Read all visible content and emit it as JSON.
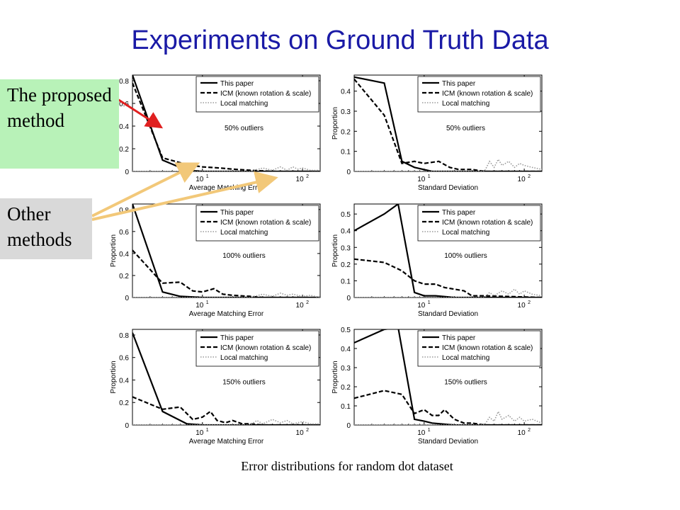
{
  "slide": {
    "title": "Experiments on Ground Truth Data",
    "caption": "Error distributions for random dot dataset"
  },
  "callouts": {
    "proposed": "The proposed method",
    "other": "Other methods"
  },
  "colors": {
    "title": "#1a1aa6",
    "red_arrow": "#e02020",
    "tan_arrow": "#f2c879",
    "proposed_bg": "#b8f2b8",
    "other_bg": "#d9d9d9"
  },
  "chart_data": [
    {
      "type": "line",
      "panel": "avg-50",
      "annotation": "50% outliers",
      "xlabel": "Average Matching Error",
      "ylabel": "Proportion",
      "xscale": "log",
      "xlim": [
        2,
        150
      ],
      "ylim": [
        0,
        0.85
      ],
      "yticks": [
        {
          "v": 0,
          "t": "0"
        },
        {
          "v": 0.2,
          "t": "0.2"
        },
        {
          "v": 0.4,
          "t": "0.4"
        },
        {
          "v": 0.6,
          "t": "0.6"
        },
        {
          "v": 0.8,
          "t": "0.8"
        }
      ],
      "xticks": [
        {
          "v": 10,
          "base": "10",
          "exp": "1"
        },
        {
          "v": 100,
          "base": "10",
          "exp": "2"
        }
      ],
      "legend": [
        "This paper",
        "ICM (known rotation & scale)",
        "Local matching"
      ],
      "series": [
        {
          "name": "This paper",
          "style": "solid",
          "x": [
            2,
            4,
            7,
            10,
            20,
            40,
            150
          ],
          "y": [
            0.85,
            0.1,
            0.01,
            0,
            0,
            0,
            0
          ]
        },
        {
          "name": "ICM (known rotation & scale)",
          "style": "dashed",
          "x": [
            2,
            4,
            7,
            10,
            15,
            20,
            30,
            50,
            80,
            150
          ],
          "y": [
            0.78,
            0.12,
            0.06,
            0.04,
            0.03,
            0.02,
            0.01,
            0,
            0,
            0
          ]
        },
        {
          "name": "Local matching",
          "style": "dotted",
          "x": [
            2,
            30,
            40,
            50,
            60,
            70,
            80,
            90,
            100,
            120,
            150
          ],
          "y": [
            0,
            0,
            0.03,
            0.01,
            0.04,
            0.01,
            0.04,
            0.02,
            0.03,
            0.01,
            0.01
          ]
        }
      ]
    },
    {
      "type": "line",
      "panel": "std-50",
      "annotation": "50% outliers",
      "xlabel": "Standard Deviation",
      "ylabel": "Proportion",
      "xscale": "log",
      "xlim": [
        2,
        150
      ],
      "ylim": [
        0,
        0.48
      ],
      "yticks": [
        {
          "v": 0,
          "t": "0"
        },
        {
          "v": 0.1,
          "t": "0.1"
        },
        {
          "v": 0.2,
          "t": "0.2"
        },
        {
          "v": 0.3,
          "t": "0.3"
        },
        {
          "v": 0.4,
          "t": "0.4"
        }
      ],
      "xticks": [
        {
          "v": 10,
          "base": "10",
          "exp": "1"
        },
        {
          "v": 100,
          "base": "10",
          "exp": "2"
        }
      ],
      "legend": [
        "This paper",
        "ICM (known rotation & scale)",
        "Local matching"
      ],
      "series": [
        {
          "name": "This paper",
          "style": "solid",
          "x": [
            2,
            4,
            6,
            8,
            12,
            20,
            150
          ],
          "y": [
            0.47,
            0.44,
            0.05,
            0.02,
            0,
            0,
            0
          ]
        },
        {
          "name": "ICM (known rotation & scale)",
          "style": "dashed",
          "x": [
            2,
            4,
            6,
            8,
            10,
            14,
            18,
            22,
            30,
            40,
            150
          ],
          "y": [
            0.46,
            0.28,
            0.04,
            0.05,
            0.04,
            0.05,
            0.02,
            0.01,
            0.01,
            0,
            0
          ]
        },
        {
          "name": "Local matching",
          "style": "dotted",
          "x": [
            2,
            40,
            45,
            50,
            55,
            60,
            70,
            80,
            90,
            100,
            120,
            150
          ],
          "y": [
            0,
            0,
            0.05,
            0.02,
            0.06,
            0.03,
            0.05,
            0.02,
            0.04,
            0.03,
            0.02,
            0.01
          ]
        }
      ]
    },
    {
      "type": "line",
      "panel": "avg-100",
      "annotation": "100% outliers",
      "xlabel": "Average Matching Error",
      "ylabel": "Proportion",
      "xscale": "log",
      "xlim": [
        2,
        150
      ],
      "ylim": [
        0,
        0.85
      ],
      "yticks": [
        {
          "v": 0,
          "t": "0"
        },
        {
          "v": 0.2,
          "t": "0.2"
        },
        {
          "v": 0.4,
          "t": "0.4"
        },
        {
          "v": 0.6,
          "t": "0.6"
        },
        {
          "v": 0.8,
          "t": "0.8"
        }
      ],
      "xticks": [
        {
          "v": 10,
          "base": "10",
          "exp": "1"
        },
        {
          "v": 100,
          "base": "10",
          "exp": "2"
        }
      ],
      "legend": [
        "This paper",
        "ICM (known rotation & scale)",
        "Local matching"
      ],
      "series": [
        {
          "name": "This paper",
          "style": "solid",
          "x": [
            2,
            4,
            6,
            10,
            20,
            150
          ],
          "y": [
            0.85,
            0.05,
            0.01,
            0,
            0,
            0
          ]
        },
        {
          "name": "ICM (known rotation & scale)",
          "style": "dashed",
          "x": [
            2,
            4,
            6,
            8,
            10,
            13,
            16,
            20,
            30,
            40,
            150
          ],
          "y": [
            0.43,
            0.13,
            0.14,
            0.06,
            0.05,
            0.08,
            0.03,
            0.02,
            0.01,
            0,
            0
          ]
        },
        {
          "name": "Local matching",
          "style": "dotted",
          "x": [
            2,
            30,
            40,
            50,
            60,
            70,
            80,
            100,
            120,
            150
          ],
          "y": [
            0,
            0,
            0.03,
            0.01,
            0.04,
            0.02,
            0.03,
            0.01,
            0.02,
            0
          ]
        }
      ]
    },
    {
      "type": "line",
      "panel": "std-100",
      "annotation": "100% outliers",
      "xlabel": "Standard Deviation",
      "ylabel": "Proportion",
      "xscale": "log",
      "xlim": [
        2,
        150
      ],
      "ylim": [
        0,
        0.56
      ],
      "yticks": [
        {
          "v": 0,
          "t": "0"
        },
        {
          "v": 0.1,
          "t": "0.1"
        },
        {
          "v": 0.2,
          "t": "0.2"
        },
        {
          "v": 0.3,
          "t": "0.3"
        },
        {
          "v": 0.4,
          "t": "0.4"
        },
        {
          "v": 0.5,
          "t": "0.5"
        }
      ],
      "xticks": [
        {
          "v": 10,
          "base": "10",
          "exp": "1"
        },
        {
          "v": 100,
          "base": "10",
          "exp": "2"
        }
      ],
      "legend": [
        "This paper",
        "ICM (known rotation & scale)",
        "Local matching"
      ],
      "series": [
        {
          "name": "This paper",
          "style": "solid",
          "x": [
            2,
            4,
            5.5,
            8,
            10,
            13,
            20,
            150
          ],
          "y": [
            0.4,
            0.5,
            0.56,
            0.03,
            0.01,
            0.01,
            0,
            0
          ]
        },
        {
          "name": "ICM (known rotation & scale)",
          "style": "dashed",
          "x": [
            2,
            4,
            6,
            8,
            10,
            13,
            16,
            20,
            25,
            30,
            40,
            150
          ],
          "y": [
            0.23,
            0.21,
            0.16,
            0.1,
            0.08,
            0.08,
            0.06,
            0.05,
            0.04,
            0.01,
            0.01,
            0
          ]
        },
        {
          "name": "Local matching",
          "style": "dotted",
          "x": [
            2,
            40,
            45,
            50,
            60,
            70,
            80,
            90,
            100,
            120,
            150
          ],
          "y": [
            0,
            0,
            0.03,
            0.01,
            0.04,
            0.02,
            0.05,
            0.02,
            0.04,
            0.02,
            0.01
          ]
        }
      ]
    },
    {
      "type": "line",
      "panel": "avg-150",
      "annotation": "150% outliers",
      "xlabel": "Average Matching Error",
      "ylabel": "Proportion",
      "xscale": "log",
      "xlim": [
        2,
        150
      ],
      "ylim": [
        0,
        0.85
      ],
      "yticks": [
        {
          "v": 0,
          "t": "0"
        },
        {
          "v": 0.2,
          "t": "0.2"
        },
        {
          "v": 0.4,
          "t": "0.4"
        },
        {
          "v": 0.6,
          "t": "0.6"
        },
        {
          "v": 0.8,
          "t": "0.8"
        }
      ],
      "xticks": [
        {
          "v": 10,
          "base": "10",
          "exp": "1"
        },
        {
          "v": 100,
          "base": "10",
          "exp": "2"
        }
      ],
      "legend": [
        "This paper",
        "ICM (known rotation & scale)",
        "Local matching"
      ],
      "series": [
        {
          "name": "This paper",
          "style": "solid",
          "x": [
            2,
            4,
            7,
            10,
            20,
            150
          ],
          "y": [
            0.82,
            0.12,
            0.01,
            0,
            0,
            0
          ]
        },
        {
          "name": "ICM (known rotation & scale)",
          "style": "dashed",
          "x": [
            2,
            4,
            6,
            8,
            10,
            12,
            14,
            17,
            20,
            25,
            30,
            40,
            150
          ],
          "y": [
            0.25,
            0.14,
            0.16,
            0.05,
            0.07,
            0.12,
            0.04,
            0.02,
            0.04,
            0.01,
            0.01,
            0,
            0
          ]
        },
        {
          "name": "Local matching",
          "style": "dotted",
          "x": [
            2,
            30,
            35,
            40,
            50,
            60,
            70,
            80,
            100,
            120,
            150
          ],
          "y": [
            0,
            0,
            0.04,
            0.01,
            0.05,
            0.02,
            0.04,
            0.01,
            0.03,
            0.01,
            0.01
          ]
        }
      ]
    },
    {
      "type": "line",
      "panel": "std-150",
      "annotation": "150% outliers",
      "xlabel": "Standard Deviation",
      "ylabel": "Proportion",
      "xscale": "log",
      "xlim": [
        2,
        150
      ],
      "ylim": [
        0,
        0.5
      ],
      "yticks": [
        {
          "v": 0,
          "t": "0"
        },
        {
          "v": 0.1,
          "t": "0.1"
        },
        {
          "v": 0.2,
          "t": "0.2"
        },
        {
          "v": 0.3,
          "t": "0.3"
        },
        {
          "v": 0.4,
          "t": "0.4"
        },
        {
          "v": 0.5,
          "t": "0.5"
        }
      ],
      "xticks": [
        {
          "v": 10,
          "base": "10",
          "exp": "1"
        },
        {
          "v": 100,
          "base": "10",
          "exp": "2"
        }
      ],
      "legend": [
        "This paper",
        "ICM (known rotation & scale)",
        "Local matching"
      ],
      "series": [
        {
          "name": "This paper",
          "style": "solid",
          "x": [
            2,
            4,
            5.5,
            8,
            10,
            12,
            20,
            150
          ],
          "y": [
            0.43,
            0.5,
            0.51,
            0.03,
            0.02,
            0.01,
            0,
            0
          ]
        },
        {
          "name": "ICM (known rotation & scale)",
          "style": "dashed",
          "x": [
            2,
            4,
            6,
            8,
            10,
            12,
            14,
            16,
            20,
            25,
            30,
            40,
            150
          ],
          "y": [
            0.14,
            0.18,
            0.16,
            0.06,
            0.08,
            0.05,
            0.05,
            0.08,
            0.03,
            0.01,
            0.01,
            0,
            0
          ]
        },
        {
          "name": "Local matching",
          "style": "dotted",
          "x": [
            2,
            40,
            45,
            50,
            55,
            60,
            70,
            80,
            90,
            100,
            120,
            150
          ],
          "y": [
            0,
            0,
            0.04,
            0.02,
            0.07,
            0.03,
            0.05,
            0.02,
            0.04,
            0.02,
            0.03,
            0.01
          ]
        }
      ]
    }
  ]
}
